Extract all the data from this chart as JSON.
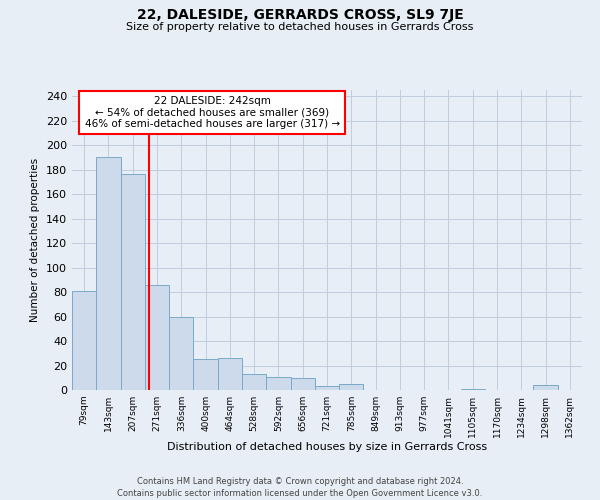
{
  "title": "22, DALESIDE, GERRARDS CROSS, SL9 7JE",
  "subtitle": "Size of property relative to detached houses in Gerrards Cross",
  "xlabel": "Distribution of detached houses by size in Gerrards Cross",
  "ylabel": "Number of detached properties",
  "bin_labels": [
    "79sqm",
    "143sqm",
    "207sqm",
    "271sqm",
    "336sqm",
    "400sqm",
    "464sqm",
    "528sqm",
    "592sqm",
    "656sqm",
    "721sqm",
    "785sqm",
    "849sqm",
    "913sqm",
    "977sqm",
    "1041sqm",
    "1105sqm",
    "1170sqm",
    "1234sqm",
    "1298sqm",
    "1362sqm"
  ],
  "bin_values": [
    81,
    190,
    176,
    86,
    60,
    25,
    26,
    13,
    11,
    10,
    3,
    5,
    0,
    0,
    0,
    0,
    1,
    0,
    0,
    4,
    0
  ],
  "bar_color": "#ccdaeb",
  "bar_edge_color": "#7aaac8",
  "vline_x_bin": 2.65,
  "vline_color": "red",
  "annotation_text": "22 DALESIDE: 242sqm\n← 54% of detached houses are smaller (369)\n46% of semi-detached houses are larger (317) →",
  "annotation_box_color": "white",
  "annotation_box_edge_color": "red",
  "footnote1": "Contains HM Land Registry data © Crown copyright and database right 2024.",
  "footnote2": "Contains public sector information licensed under the Open Government Licence v3.0.",
  "ylim": [
    0,
    245
  ],
  "yticks": [
    0,
    20,
    40,
    60,
    80,
    100,
    120,
    140,
    160,
    180,
    200,
    220,
    240
  ],
  "bg_color": "#e8eef5",
  "grid_color": "#c0cedd"
}
